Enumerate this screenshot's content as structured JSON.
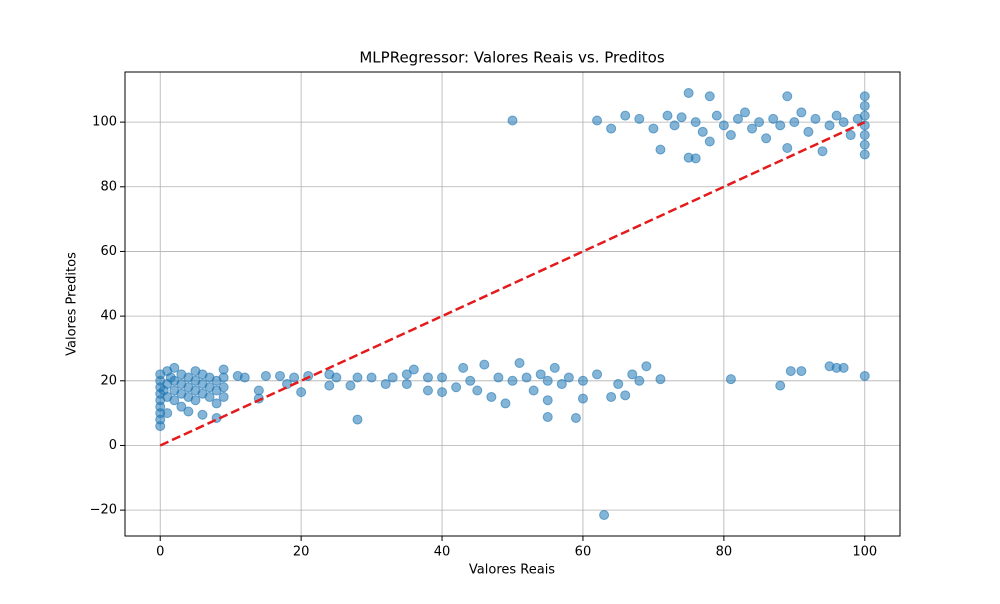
{
  "chart_data": {
    "type": "scatter",
    "title": "MLPRegressor: Valores Reais vs. Preditos",
    "xlabel": "Valores Reais",
    "ylabel": "Valores Preditos",
    "color": "#1f77b4",
    "x": [
      0,
      0,
      0,
      0,
      0,
      0,
      0,
      0,
      0,
      0.5,
      1,
      1,
      1,
      1,
      1.5,
      2,
      2,
      2,
      2,
      3,
      3,
      3,
      3,
      4,
      4,
      4,
      4,
      5,
      5,
      5,
      5,
      6,
      6,
      6,
      6,
      7,
      7,
      7,
      8,
      8,
      8,
      8,
      9,
      9,
      9,
      9,
      11,
      12,
      14,
      14,
      15,
      17,
      18,
      19,
      20,
      21,
      24,
      24,
      25,
      27,
      28,
      28,
      30,
      32,
      33,
      35,
      35,
      36,
      38,
      38,
      40,
      40,
      42,
      43,
      44,
      45,
      46,
      47,
      48,
      49,
      50,
      51,
      52,
      53,
      54,
      55,
      55,
      55,
      56,
      57,
      58,
      59,
      60,
      60,
      62,
      63,
      64,
      65,
      66,
      67,
      68,
      69,
      71,
      81,
      88,
      89.5,
      91,
      95,
      96,
      97,
      100,
      50,
      62,
      64,
      66,
      68,
      70,
      71,
      72,
      73,
      74,
      75,
      75,
      76,
      76,
      77,
      78,
      78,
      79,
      80,
      81,
      82,
      83,
      84,
      85,
      86,
      87,
      88,
      89,
      89,
      90,
      91,
      92,
      93,
      94,
      95,
      96,
      97,
      98,
      99,
      100,
      100,
      100,
      100,
      100,
      100,
      100
    ],
    "values": [
      6,
      8,
      10,
      12,
      14,
      16,
      18,
      20,
      22,
      17,
      10,
      15,
      19,
      23,
      21,
      14,
      17,
      20,
      24,
      12,
      16,
      19,
      22,
      10.5,
      15,
      18,
      21,
      14,
      17,
      20,
      23,
      9.5,
      16,
      19,
      22,
      15,
      18,
      21,
      8.5,
      13,
      17,
      20,
      15,
      18,
      21,
      23.5,
      21.5,
      21,
      17,
      14.5,
      21.5,
      21.5,
      19,
      21,
      16.5,
      21.5,
      22,
      18.5,
      21,
      18.5,
      8,
      21,
      21,
      19,
      21,
      22,
      19,
      23.5,
      17,
      21,
      16.5,
      21,
      18,
      24,
      20,
      17,
      25,
      15,
      21,
      13,
      20,
      25.5,
      21,
      17,
      22,
      8.8,
      14,
      20,
      24,
      19,
      21,
      8.5,
      14.5,
      20,
      22,
      -21.5,
      15,
      19,
      15.5,
      22,
      20,
      24.5,
      20.5,
      20.5,
      18.5,
      23,
      23,
      24.5,
      24,
      24,
      21.5,
      100.5,
      100.5,
      98,
      102,
      101,
      98,
      91.5,
      102,
      99,
      101.5,
      89,
      109,
      88.8,
      100,
      97,
      108,
      94,
      102,
      99,
      96,
      101,
      103,
      98,
      100,
      95,
      101,
      99,
      92,
      108,
      100,
      103,
      97,
      101,
      91,
      99,
      102,
      100,
      96,
      101,
      90,
      93,
      96,
      99,
      102,
      105,
      108
    ],
    "xlim": [
      -5,
      105
    ],
    "ylim": [
      -28,
      115.5
    ],
    "xticks": [
      0,
      20,
      40,
      60,
      80,
      100
    ],
    "yticks": [
      {
        "value": -20,
        "label": "−20"
      },
      0,
      20,
      40,
      60,
      80,
      100
    ],
    "grid": true,
    "reference_line": {
      "x": [
        0,
        100
      ],
      "y": [
        0,
        100
      ],
      "color": "#e41a1c"
    }
  }
}
